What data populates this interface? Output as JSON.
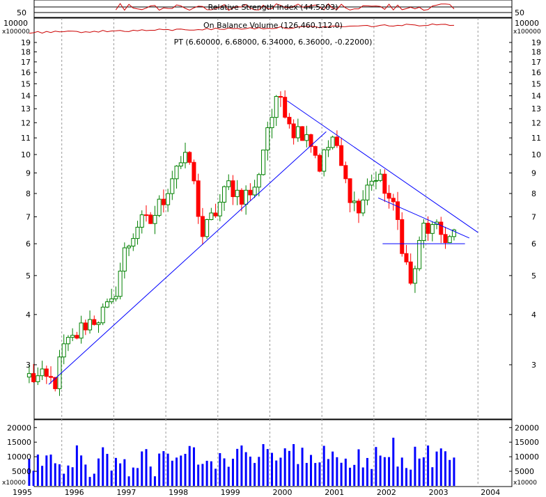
{
  "chart_data": {
    "type": "candlestick",
    "symbol_line": "PT (6.60000, 6.68000, 6.34000, 6.36000, -0.22000)",
    "indicators": {
      "rsi_label": "Relative Strength Index (44.5203)",
      "rsi_ticks": [
        "50"
      ],
      "obv_label": "On Balance Volume (126,460,112.0)",
      "obv_unit_top": "10000",
      "obv_unit": "x100000"
    },
    "price_axis": {
      "scale": "log",
      "ticks": [
        3,
        4,
        5,
        6,
        7,
        8,
        9,
        10,
        11,
        12,
        13,
        14,
        15,
        16,
        17,
        18,
        19
      ],
      "range": [
        2.4,
        20
      ]
    },
    "volume_axis": {
      "ticks": [
        5000,
        10000,
        15000,
        20000
      ],
      "unit": "x10000",
      "range": [
        0,
        21500
      ]
    },
    "x_axis": {
      "years": [
        "1995",
        "1996",
        "1997",
        "1998",
        "1999",
        "2000",
        "2001",
        "2002",
        "2003",
        "2004"
      ]
    },
    "anchor_prices": [
      [
        "1995-05",
        2.8
      ],
      [
        "1995-11",
        2.72
      ],
      [
        "1996-01",
        3.3
      ],
      [
        "1996-03",
        3.45
      ],
      [
        "1996-06",
        3.8
      ],
      [
        "1996-09",
        3.95
      ],
      [
        "1996-12",
        4.2
      ],
      [
        "1997-03",
        5.7
      ],
      [
        "1997-06",
        6.7
      ],
      [
        "1997-09",
        6.8
      ],
      [
        "1997-12",
        7.8
      ],
      [
        "1998-03",
        9.5
      ],
      [
        "1998-06",
        9.6
      ],
      [
        "1998-09",
        6.3
      ],
      [
        "1998-12",
        7.2
      ],
      [
        "1999-03",
        8.4
      ],
      [
        "1999-06",
        7.9
      ],
      [
        "1999-09",
        8.1
      ],
      [
        "1999-12",
        11.8
      ],
      [
        "2000-03",
        14.0
      ],
      [
        "2000-06",
        11.5
      ],
      [
        "2000-09",
        11.5
      ],
      [
        "2000-12",
        9.4
      ],
      [
        "2001-03",
        11.0
      ],
      [
        "2001-06",
        8.5
      ],
      [
        "2001-09",
        7.2
      ],
      [
        "2001-12",
        8.8
      ],
      [
        "2002-03",
        8.3
      ],
      [
        "2002-06",
        6.8
      ],
      [
        "2002-09",
        4.7
      ],
      [
        "2002-12",
        6.6
      ],
      [
        "2003-03",
        6.4
      ],
      [
        "2003-06",
        6.2
      ],
      [
        "2003-07",
        6.36
      ]
    ],
    "trendlines": [
      {
        "from": [
          "1995-10",
          2.68
        ],
        "to": [
          "2001-02",
          11.4
        ]
      },
      {
        "from": [
          "2000-05",
          13.6
        ],
        "to": [
          "2004-01",
          6.4
        ]
      },
      {
        "from": [
          "2002-02",
          7.8
        ],
        "to": [
          "2003-11",
          6.2
        ]
      },
      {
        "from": [
          "2002-03",
          6.0
        ],
        "to": [
          "2003-10",
          6.0
        ]
      }
    ]
  }
}
